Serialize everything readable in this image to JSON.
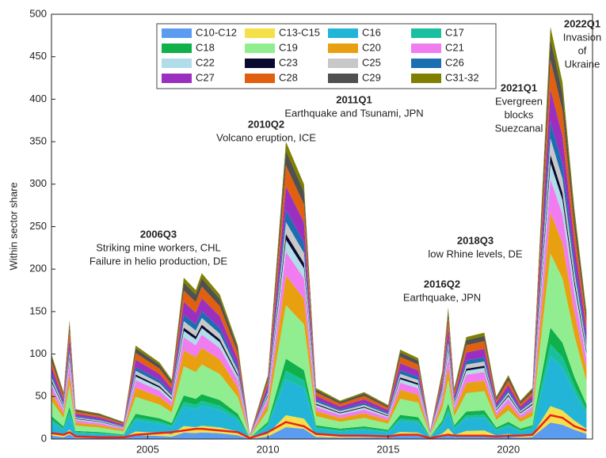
{
  "chart_data": {
    "type": "stacked-area",
    "y_label": "Within sector share",
    "x": [
      2001,
      2001.5,
      2001.75,
      2002,
      2003,
      2004,
      2004.5,
      2005.5,
      2006,
      2006.5,
      2007,
      2007.25,
      2008,
      2008.75,
      2009.25,
      2010,
      2010.75,
      2011.5,
      2012,
      2013,
      2014,
      2015,
      2015.5,
      2016.25,
      2016.75,
      2017.25,
      2017.5,
      2017.75,
      2018.25,
      2019,
      2019.5,
      2020,
      2020.5,
      2021,
      2021.75,
      2022.25,
      2022.75,
      2023.25
    ],
    "xlim": [
      2001,
      2023.5
    ],
    "xticks": [
      2005,
      2010,
      2015,
      2020
    ],
    "ylim": [
      0,
      500
    ],
    "yticks": [
      0,
      50,
      100,
      150,
      200,
      250,
      300,
      350,
      400,
      450,
      500
    ],
    "series": [
      {
        "name": "C10-C12",
        "color": "#5b9bf0",
        "values": [
          4,
          2.2,
          5.6,
          1.4,
          1.2,
          0.8,
          4.4,
          3.6,
          2.8,
          7.6,
          7,
          7.8,
          6.8,
          4.4,
          0.2,
          3,
          14,
          12,
          2.4,
          1.8,
          2.2,
          1.6,
          4.2,
          3.8,
          0.4,
          3.2,
          6.2,
          2.4,
          4.8,
          5,
          2,
          3,
          1.8,
          2.4,
          19.4,
          16.8,
          10.8,
          6
        ]
      },
      {
        "name": "C13-C15",
        "color": "#f5e04a",
        "values": [
          4,
          2.2,
          5.6,
          1.4,
          1.2,
          0.8,
          4.4,
          3.6,
          2.8,
          7.6,
          7,
          7.8,
          6.8,
          4.4,
          0.2,
          3,
          14,
          12,
          2.4,
          1.8,
          2.2,
          1.6,
          4.2,
          3.8,
          0.4,
          3.2,
          6.2,
          2.4,
          4.8,
          5,
          2,
          3,
          1.8,
          2.4,
          19.4,
          16.8,
          10.8,
          6
        ]
      },
      {
        "name": "C16",
        "color": "#22b5d8",
        "values": [
          12,
          6.6,
          16.8,
          4.2,
          3.6,
          2.4,
          13.2,
          10.8,
          8.4,
          22.8,
          21,
          23.4,
          20.4,
          13.2,
          0.6,
          9,
          42,
          36,
          7.2,
          5.4,
          6.6,
          4.8,
          12.6,
          11.4,
          1.2,
          9.6,
          18.6,
          7.2,
          14.4,
          15,
          6,
          9,
          5.4,
          7.2,
          58.2,
          50.4,
          32.4,
          18
        ]
      },
      {
        "name": "C17",
        "color": "#19c0a0",
        "values": [
          3,
          1.7,
          4.2,
          1.1,
          0.9,
          0.6,
          3.3,
          2.7,
          2.1,
          5.7,
          5.3,
          5.9,
          5.1,
          3.3,
          0.2,
          2.3,
          10.5,
          9,
          1.8,
          1.4,
          1.7,
          1.2,
          3.2,
          2.9,
          0.3,
          2.4,
          4.7,
          1.8,
          3.6,
          3.8,
          1.5,
          2.3,
          1.4,
          1.8,
          14.6,
          12.6,
          8.1,
          4.5
        ]
      },
      {
        "name": "C18",
        "color": "#10b04a",
        "values": [
          4,
          2.2,
          5.6,
          1.4,
          1.2,
          0.8,
          4.4,
          3.6,
          2.8,
          7.6,
          7,
          7.8,
          6.8,
          4.4,
          0.2,
          3,
          14,
          12,
          2.4,
          1.8,
          2.2,
          1.6,
          4.2,
          3.8,
          0.4,
          3.2,
          6.2,
          2.4,
          4.8,
          5,
          2,
          3,
          1.8,
          2.4,
          19.4,
          16.8,
          10.8,
          6
        ]
      },
      {
        "name": "C19",
        "color": "#90ee90",
        "values": [
          18,
          9.9,
          25.2,
          6.3,
          5.4,
          3.6,
          19.8,
          16.2,
          12.6,
          34.2,
          31.5,
          35.1,
          30.6,
          19.8,
          0.9,
          13.5,
          63,
          54,
          10.8,
          8.1,
          9.9,
          7.2,
          18.9,
          17.1,
          1.8,
          14.4,
          27.9,
          10.8,
          21.6,
          22.5,
          9,
          13.5,
          8.1,
          10.8,
          87.3,
          75.6,
          48.6,
          27
        ]
      },
      {
        "name": "C20",
        "color": "#e8a010",
        "values": [
          10,
          5.5,
          14,
          3.5,
          3,
          2,
          11,
          9,
          7,
          19,
          17.5,
          19.5,
          17,
          11,
          0.5,
          7.5,
          35,
          30,
          6,
          4.5,
          5.5,
          4,
          10.5,
          9.5,
          1,
          8,
          15.5,
          6,
          12,
          12.5,
          5,
          7.5,
          4.5,
          6,
          48.5,
          42,
          27,
          15
        ]
      },
      {
        "name": "C21",
        "color": "#f07cf0",
        "values": [
          8,
          4.4,
          11.2,
          2.8,
          2.4,
          1.6,
          8.8,
          7.2,
          5.6,
          15.2,
          14,
          15.6,
          13.6,
          8.8,
          0.4,
          6,
          28,
          24,
          4.8,
          3.6,
          4.4,
          3.2,
          8.4,
          7.6,
          0.8,
          6.4,
          12.4,
          4.8,
          9.6,
          10,
          4,
          6,
          3.6,
          4.8,
          38.8,
          33.6,
          21.6,
          12
        ]
      },
      {
        "name": "C22",
        "color": "#b0dde8",
        "values": [
          4,
          2.2,
          5.6,
          1.4,
          1.2,
          0.8,
          4.4,
          3.6,
          2.8,
          7.6,
          7,
          7.8,
          6.8,
          4.4,
          0.2,
          3,
          14,
          12,
          2.4,
          1.8,
          2.2,
          1.6,
          4.2,
          3.8,
          0.4,
          3.2,
          6.2,
          2.4,
          4.8,
          5,
          2,
          3,
          1.8,
          2.4,
          19.4,
          16.8,
          10.8,
          6
        ]
      },
      {
        "name": "C23",
        "color": "#0a0a30",
        "values": [
          2,
          1.1,
          2.8,
          0.7,
          0.6,
          0.4,
          2.2,
          1.8,
          1.4,
          3.8,
          3.5,
          3.9,
          3.4,
          2.2,
          0.1,
          1.5,
          7,
          6,
          1.2,
          0.9,
          1.1,
          0.8,
          2.1,
          1.9,
          0.2,
          1.6,
          3.1,
          1.2,
          2.4,
          2.5,
          1,
          1.5,
          0.9,
          1.2,
          9.7,
          8.4,
          5.4,
          3
        ]
      },
      {
        "name": "C25",
        "color": "#c8c8c8",
        "values": [
          4,
          2.2,
          5.6,
          1.4,
          1.2,
          0.8,
          4.4,
          3.6,
          2.8,
          7.6,
          7,
          7.8,
          6.8,
          4.4,
          0.2,
          3,
          14,
          12,
          2.4,
          1.8,
          2.2,
          1.6,
          4.2,
          3.8,
          0.4,
          3.2,
          6.2,
          2.4,
          4.8,
          5,
          2,
          3,
          1.8,
          2.4,
          19.4,
          16.8,
          10.8,
          6
        ]
      },
      {
        "name": "C26",
        "color": "#1a6fb0",
        "values": [
          4,
          2.2,
          5.6,
          1.4,
          1.2,
          0.8,
          4.4,
          3.6,
          2.8,
          7.6,
          7,
          7.8,
          6.8,
          4.4,
          0.2,
          3,
          14,
          12,
          2.4,
          1.8,
          2.2,
          1.6,
          4.2,
          3.8,
          0.4,
          3.2,
          6.2,
          2.4,
          4.8,
          5,
          2,
          3,
          1.8,
          2.4,
          19.4,
          16.8,
          10.8,
          6
        ]
      },
      {
        "name": "C27",
        "color": "#9b30c0",
        "values": [
          8,
          4.4,
          11.2,
          2.8,
          2.4,
          1.6,
          8.8,
          7.2,
          5.6,
          15.2,
          14,
          15.6,
          13.6,
          8.8,
          0.4,
          6,
          28,
          24,
          4.8,
          3.6,
          4.4,
          3.2,
          8.4,
          7.6,
          0.8,
          6.4,
          12.4,
          4.8,
          9.6,
          10,
          4,
          6,
          3.6,
          4.8,
          38.8,
          33.6,
          21.6,
          12
        ]
      },
      {
        "name": "C28",
        "color": "#e06010",
        "values": [
          7,
          3.9,
          9.8,
          2.5,
          2.1,
          1.4,
          7.7,
          6.3,
          4.9,
          13.3,
          12.3,
          13.7,
          11.9,
          7.7,
          0.4,
          5.3,
          24.5,
          21,
          4.2,
          3.2,
          3.9,
          2.8,
          7.4,
          6.7,
          0.7,
          5.6,
          10.9,
          4.2,
          8.4,
          8.8,
          3.5,
          5.3,
          3.2,
          4.2,
          34,
          29.4,
          18.9,
          10.5
        ]
      },
      {
        "name": "C29",
        "color": "#505050",
        "values": [
          5,
          2.8,
          7,
          1.8,
          1.5,
          1,
          5.5,
          4.5,
          3.5,
          9.5,
          8.8,
          9.8,
          8.5,
          5.5,
          0.3,
          3.8,
          17.5,
          15,
          3,
          2.3,
          2.8,
          2,
          5.3,
          4.8,
          0.5,
          4,
          7.8,
          3,
          6,
          6.3,
          2.5,
          3.8,
          2.3,
          3,
          24.3,
          21,
          13.5,
          7.5
        ]
      },
      {
        "name": "C31-32",
        "color": "#808000",
        "values": [
          3,
          1.7,
          4.2,
          1.1,
          0.9,
          0.6,
          3.3,
          2.7,
          2.1,
          5.7,
          5.3,
          5.9,
          5.1,
          3.3,
          0.2,
          2.3,
          10.5,
          9,
          1.8,
          1.4,
          1.7,
          1.2,
          3.2,
          2.9,
          0.3,
          2.4,
          4.7,
          1.8,
          3.6,
          3.8,
          1.5,
          2.3,
          1.4,
          1.8,
          14.6,
          12.6,
          8.1,
          4.5
        ]
      }
    ],
    "lines": [
      {
        "color": "#e8221c",
        "values": [
          7,
          5,
          8,
          3,
          2,
          2,
          5,
          7,
          8,
          10,
          12,
          12,
          10,
          8,
          1,
          8,
          20,
          15,
          6,
          4,
          4,
          3,
          5,
          5,
          1,
          4,
          5,
          4,
          4,
          4,
          3,
          4,
          4,
          5,
          28,
          25,
          15,
          10
        ]
      }
    ],
    "annotations": [
      {
        "title": "2006Q3",
        "lines": [
          "Striking mine workers, CHL",
          "Failure in helio production, DE"
        ]
      },
      {
        "title": "2010Q2",
        "lines": [
          "Volcano eruption, ICE"
        ]
      },
      {
        "title": "2011Q1",
        "lines": [
          "Earthquake and Tsunami, JPN"
        ]
      },
      {
        "title": "2016Q2",
        "lines": [
          "Earthquake, JPN"
        ]
      },
      {
        "title": "2018Q3",
        "lines": [
          "low Rhine levels, DE"
        ]
      },
      {
        "title": "2021Q1",
        "lines": [
          "Evergreen",
          "blocks",
          "Suezcanal"
        ]
      },
      {
        "title": "2022Q1",
        "lines": [
          "Invasion",
          "of",
          "Ukraine"
        ]
      }
    ]
  }
}
